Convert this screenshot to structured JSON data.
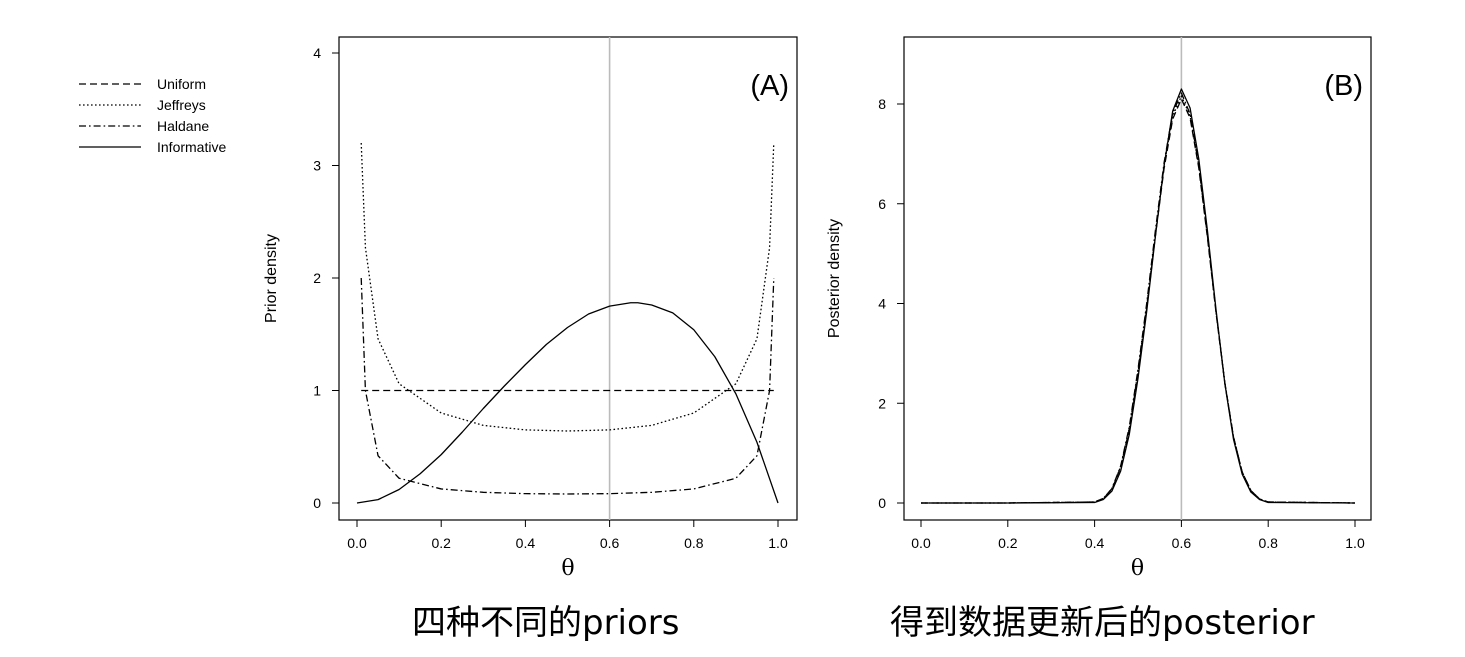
{
  "captions": {
    "a": "四种不同的priors",
    "b": "得到数据更新后的posterior"
  },
  "legend": {
    "entries": [
      {
        "label": "Uniform",
        "dash": "dashed"
      },
      {
        "label": "Jeffreys",
        "dash": "dotted"
      },
      {
        "label": "Haldane",
        "dash": "dashdot"
      },
      {
        "label": "Informative",
        "dash": "solid"
      }
    ]
  },
  "chart_data": [
    {
      "type": "line",
      "panel_label": "(A)",
      "xlabel": "θ",
      "ylabel": "Prior density",
      "xlim": [
        0,
        1
      ],
      "ylim": [
        0,
        4
      ],
      "xticks": [
        "0.0",
        "0.2",
        "0.4",
        "0.6",
        "0.8",
        "1.0"
      ],
      "yticks": [
        "0",
        "1",
        "2",
        "3",
        "4"
      ],
      "reference_line_x": 0.6,
      "reference_line_color": "#bbbbbb",
      "series": [
        {
          "name": "Uniform",
          "dash": "dashed",
          "x": [
            0.01,
            0.1,
            0.2,
            0.3,
            0.4,
            0.5,
            0.6,
            0.7,
            0.8,
            0.9,
            0.99
          ],
          "y": [
            1,
            1,
            1,
            1,
            1,
            1,
            1,
            1,
            1,
            1,
            1
          ]
        },
        {
          "name": "Jeffreys",
          "dash": "dotted",
          "x": [
            0.01,
            0.02,
            0.05,
            0.1,
            0.2,
            0.3,
            0.4,
            0.5,
            0.6,
            0.7,
            0.8,
            0.9,
            0.95,
            0.98,
            0.99
          ],
          "y": [
            3.2,
            2.27,
            1.46,
            1.06,
            0.8,
            0.69,
            0.65,
            0.64,
            0.65,
            0.69,
            0.8,
            1.06,
            1.46,
            2.27,
            3.2
          ]
        },
        {
          "name": "Haldane",
          "dash": "dashdot",
          "x": [
            0.01,
            0.02,
            0.05,
            0.1,
            0.2,
            0.3,
            0.4,
            0.5,
            0.6,
            0.7,
            0.8,
            0.9,
            0.95,
            0.98,
            0.99
          ],
          "y": [
            2.0,
            1.0,
            0.42,
            0.22,
            0.125,
            0.095,
            0.083,
            0.08,
            0.083,
            0.095,
            0.125,
            0.22,
            0.42,
            1.0,
            2.0
          ]
        },
        {
          "name": "Informative",
          "dash": "solid",
          "x": [
            0.0,
            0.05,
            0.1,
            0.15,
            0.2,
            0.25,
            0.3,
            0.35,
            0.4,
            0.45,
            0.5,
            0.55,
            0.6,
            0.65,
            0.667,
            0.7,
            0.75,
            0.8,
            0.85,
            0.9,
            0.95,
            1.0
          ],
          "y": [
            0.0,
            0.03,
            0.12,
            0.26,
            0.43,
            0.63,
            0.84,
            1.04,
            1.23,
            1.41,
            1.56,
            1.68,
            1.75,
            1.78,
            1.78,
            1.76,
            1.69,
            1.54,
            1.3,
            0.97,
            0.54,
            0.0
          ]
        }
      ]
    },
    {
      "type": "line",
      "panel_label": "(B)",
      "xlabel": "θ",
      "ylabel": "Posterior density",
      "xlim": [
        0,
        1
      ],
      "ylim": [
        0,
        9
      ],
      "xticks": [
        "0.0",
        "0.2",
        "0.4",
        "0.6",
        "0.8",
        "1.0"
      ],
      "yticks": [
        "0",
        "2",
        "4",
        "6",
        "8"
      ],
      "reference_line_x": 0.6,
      "reference_line_color": "#bbbbbb",
      "series": [
        {
          "name": "Uniform",
          "dash": "dashed",
          "x": [
            0.0,
            0.2,
            0.4,
            0.42,
            0.44,
            0.46,
            0.48,
            0.5,
            0.52,
            0.54,
            0.56,
            0.58,
            0.6,
            0.62,
            0.64,
            0.66,
            0.68,
            0.7,
            0.72,
            0.74,
            0.76,
            0.78,
            0.8,
            1.0
          ],
          "y": [
            0,
            0,
            0.02,
            0.09,
            0.28,
            0.71,
            1.48,
            2.6,
            3.9,
            5.35,
            6.7,
            7.7,
            8.1,
            7.72,
            6.72,
            5.32,
            3.8,
            2.4,
            1.32,
            0.62,
            0.25,
            0.08,
            0.02,
            0
          ]
        },
        {
          "name": "Jeffreys",
          "dash": "dotted",
          "x": [
            0.0,
            0.2,
            0.4,
            0.42,
            0.44,
            0.46,
            0.48,
            0.5,
            0.52,
            0.54,
            0.56,
            0.58,
            0.6,
            0.62,
            0.64,
            0.66,
            0.68,
            0.7,
            0.72,
            0.74,
            0.76,
            0.78,
            0.8,
            1.0
          ],
          "y": [
            0,
            0,
            0.02,
            0.09,
            0.29,
            0.73,
            1.5,
            2.64,
            3.95,
            5.4,
            6.76,
            7.76,
            8.16,
            7.76,
            6.76,
            5.36,
            3.82,
            2.42,
            1.33,
            0.62,
            0.25,
            0.08,
            0.02,
            0
          ]
        },
        {
          "name": "Haldane",
          "dash": "dashdot",
          "x": [
            0.0,
            0.2,
            0.4,
            0.42,
            0.44,
            0.46,
            0.48,
            0.5,
            0.52,
            0.54,
            0.56,
            0.58,
            0.6,
            0.62,
            0.64,
            0.66,
            0.68,
            0.7,
            0.72,
            0.74,
            0.76,
            0.78,
            0.8,
            1.0
          ],
          "y": [
            0,
            0,
            0.02,
            0.09,
            0.29,
            0.74,
            1.53,
            2.68,
            4.0,
            5.46,
            6.82,
            7.82,
            8.22,
            7.8,
            6.78,
            5.36,
            3.82,
            2.42,
            1.33,
            0.62,
            0.25,
            0.08,
            0.02,
            0
          ]
        },
        {
          "name": "Informative",
          "dash": "solid",
          "x": [
            0.0,
            0.2,
            0.4,
            0.42,
            0.44,
            0.46,
            0.48,
            0.5,
            0.52,
            0.54,
            0.56,
            0.58,
            0.6,
            0.62,
            0.64,
            0.66,
            0.68,
            0.7,
            0.72,
            0.74,
            0.76,
            0.78,
            0.8,
            1.0
          ],
          "y": [
            0,
            0,
            0.01,
            0.07,
            0.24,
            0.64,
            1.38,
            2.5,
            3.84,
            5.34,
            6.76,
            7.86,
            8.3,
            7.92,
            6.9,
            5.46,
            3.86,
            2.4,
            1.28,
            0.58,
            0.22,
            0.07,
            0.01,
            0
          ]
        }
      ]
    }
  ]
}
